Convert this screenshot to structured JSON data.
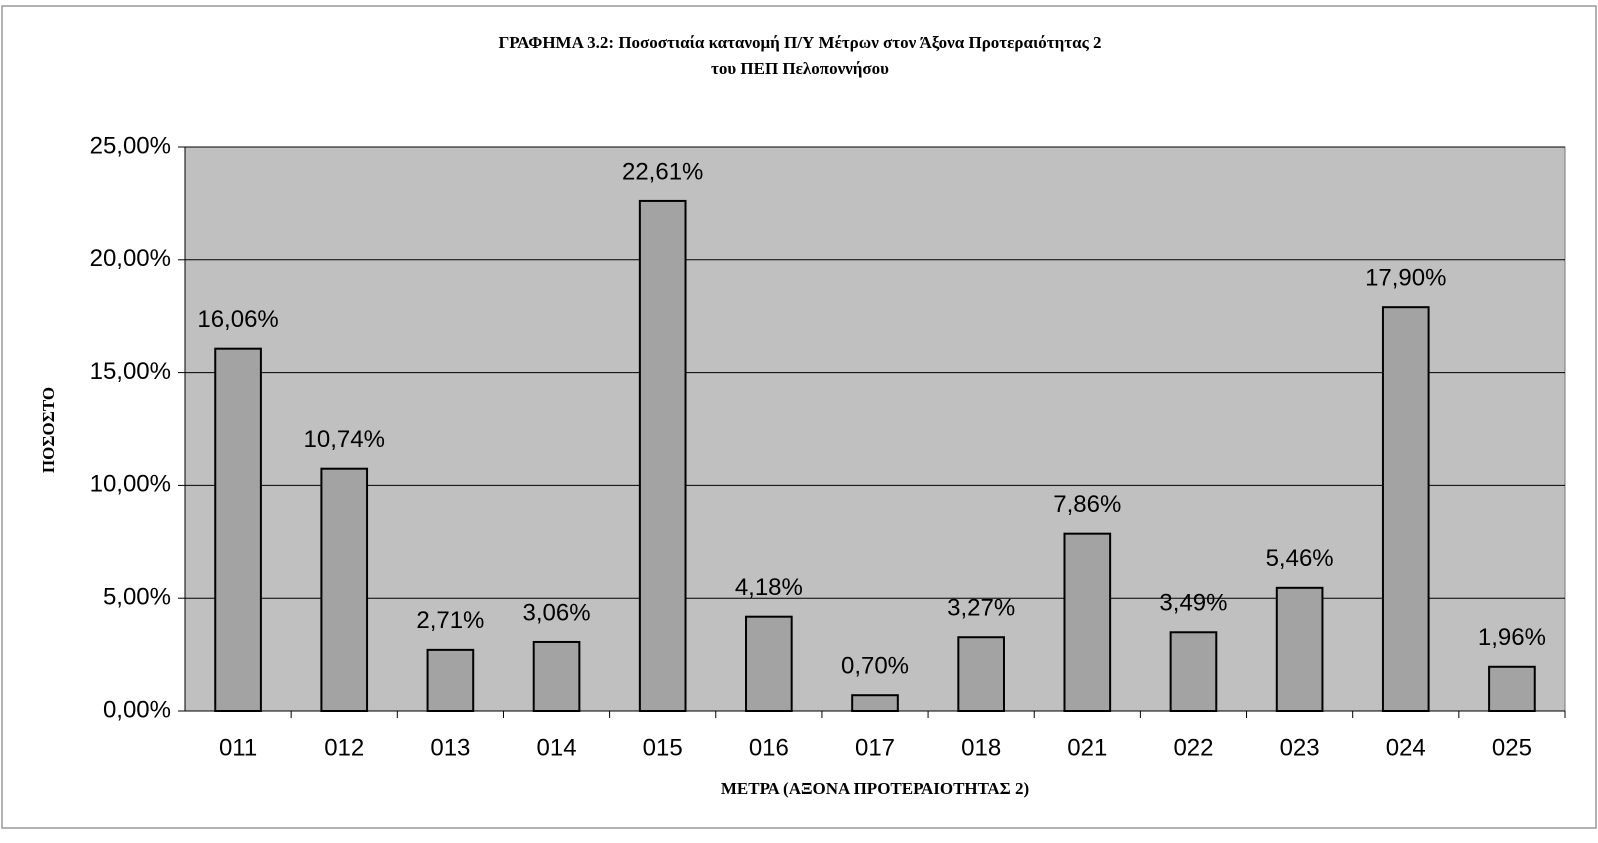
{
  "chart_data": {
    "type": "bar",
    "title": [
      "ΓΡΑΦΗΜΑ 3.2: Ποσοστιαία κατανομή Π/Υ Μέτρων στον Άξονα Προτεραιότητας 2",
      "του ΠΕΠ Πελοποννήσου"
    ],
    "x_label": "ΜΕΤΡΑ (ΑΞΟΝΑ ΠΡΟΤΕΡΑΙΟΤΗΤΑΣ 2)",
    "y_label": "ΠΟΣΟΣΤΟ",
    "categories": [
      "011",
      "012",
      "013",
      "014",
      "015",
      "016",
      "017",
      "018",
      "021",
      "022",
      "023",
      "024",
      "025"
    ],
    "values": [
      16.06,
      10.74,
      2.71,
      3.06,
      22.61,
      4.18,
      0.7,
      3.27,
      7.86,
      3.49,
      5.46,
      17.9,
      1.96
    ],
    "value_labels": [
      "16,06%",
      "10,74%",
      "2,71%",
      "3,06%",
      "22,61%",
      "4,18%",
      "0,70%",
      "3,27%",
      "7,86%",
      "3,49%",
      "5,46%",
      "17,90%",
      "1,96%"
    ],
    "color": "#a3a3a3",
    "plot_background": "#c0c0c0",
    "ylim": [
      0,
      25
    ],
    "yticks": [
      {
        "value": 0,
        "label": "0,00%"
      },
      {
        "value": 5,
        "label": "5,00%"
      },
      {
        "value": 10,
        "label": "10,00%"
      },
      {
        "value": 15,
        "label": "15,00%"
      },
      {
        "value": 20,
        "label": "20,00%"
      },
      {
        "value": 25,
        "label": "25,00%"
      }
    ],
    "grid": true
  }
}
